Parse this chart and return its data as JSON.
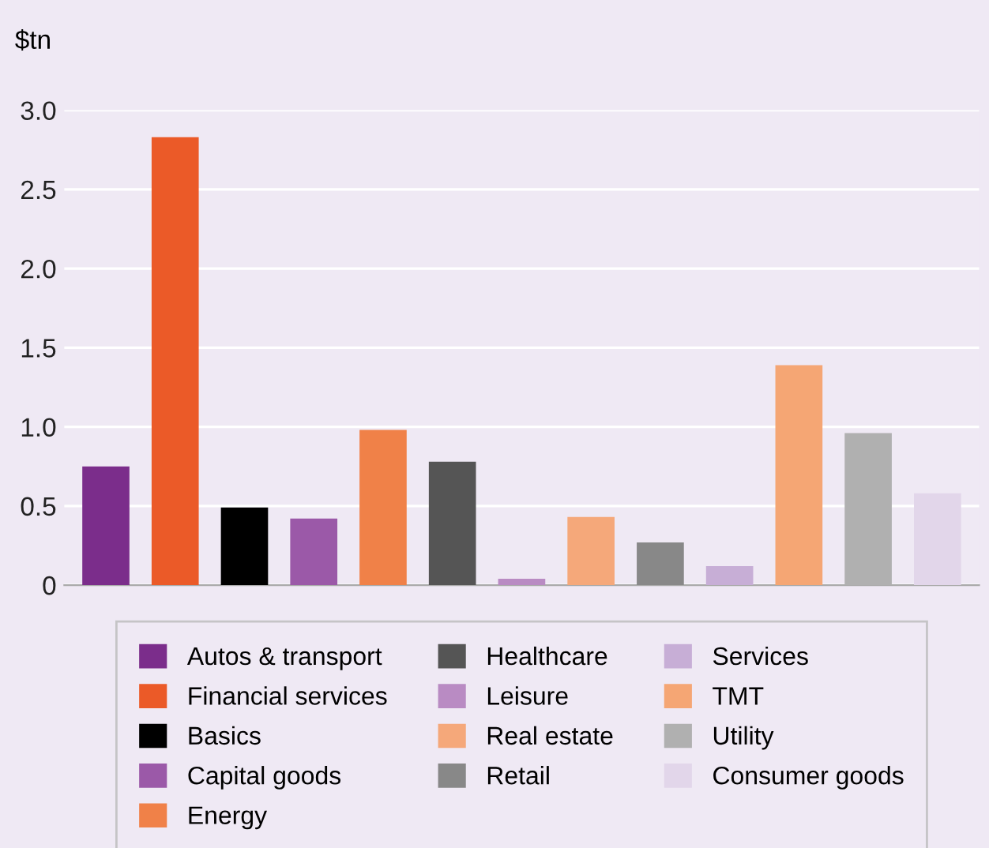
{
  "chart_data": {
    "type": "bar",
    "ylabel": "$tn",
    "categories": [
      null,
      null,
      null,
      null,
      null,
      null,
      null,
      null,
      null,
      null,
      null,
      null,
      null
    ],
    "series": [
      {
        "name": "Autos & transport",
        "color": "#7b2d8b",
        "values": [
          0.75,
          null,
          null,
          null,
          null,
          null,
          null,
          null,
          null,
          null,
          null,
          null,
          null
        ]
      },
      {
        "name": "Financial services",
        "color": "#eb5a28",
        "values": [
          null,
          2.83,
          null,
          null,
          null,
          null,
          null,
          null,
          null,
          null,
          null,
          null,
          null
        ]
      },
      {
        "name": "Basics",
        "color": "#000000",
        "values": [
          null,
          null,
          0.49,
          null,
          null,
          null,
          null,
          null,
          null,
          null,
          null,
          null,
          null
        ]
      },
      {
        "name": "Capital goods",
        "color": "#9b59a8",
        "values": [
          null,
          null,
          null,
          0.42,
          null,
          null,
          null,
          null,
          null,
          null,
          null,
          null,
          null
        ]
      },
      {
        "name": "Energy",
        "color": "#f08148",
        "values": [
          null,
          null,
          null,
          null,
          0.98,
          null,
          null,
          null,
          null,
          null,
          null,
          null,
          null
        ]
      },
      {
        "name": "Healthcare",
        "color": "#555555",
        "values": [
          null,
          null,
          null,
          null,
          null,
          0.78,
          null,
          null,
          null,
          null,
          null,
          null,
          null
        ]
      },
      {
        "name": "Leisure",
        "color": "#b98bc3",
        "values": [
          null,
          null,
          null,
          null,
          null,
          null,
          0.04,
          null,
          null,
          null,
          null,
          null,
          null
        ]
      },
      {
        "name": "Real estate",
        "color": "#f5a87a",
        "values": [
          null,
          null,
          null,
          null,
          null,
          null,
          null,
          0.43,
          null,
          null,
          null,
          null,
          null
        ]
      },
      {
        "name": "Retail",
        "color": "#888888",
        "values": [
          null,
          null,
          null,
          null,
          null,
          null,
          null,
          null,
          0.27,
          null,
          null,
          null,
          null
        ]
      },
      {
        "name": "Services",
        "color": "#c7aed6",
        "values": [
          null,
          null,
          null,
          null,
          null,
          null,
          null,
          null,
          null,
          0.12,
          null,
          null,
          null
        ]
      },
      {
        "name": "TMT",
        "color": "#f5a674",
        "values": [
          null,
          null,
          null,
          null,
          null,
          null,
          null,
          null,
          null,
          null,
          1.39,
          null,
          null
        ]
      },
      {
        "name": "Utility",
        "color": "#b0b0b0",
        "values": [
          null,
          null,
          null,
          null,
          null,
          null,
          null,
          null,
          null,
          null,
          null,
          0.96,
          null
        ]
      },
      {
        "name": "Consumer goods",
        "color": "#e2d6ea",
        "values": [
          null,
          null,
          null,
          null,
          null,
          null,
          null,
          null,
          null,
          null,
          null,
          null,
          0.58
        ]
      }
    ],
    "ylim": [
      0,
      3
    ],
    "yticks": [
      {
        "value": 0,
        "label": "0"
      },
      0.5,
      {
        "value": 1,
        "label": "1.0"
      },
      1.5,
      {
        "value": 2,
        "label": "2.0"
      },
      2.5,
      {
        "value": 3,
        "label": "3.0"
      }
    ],
    "grid": "y",
    "legend": "bottom",
    "tick_labels": "y"
  }
}
